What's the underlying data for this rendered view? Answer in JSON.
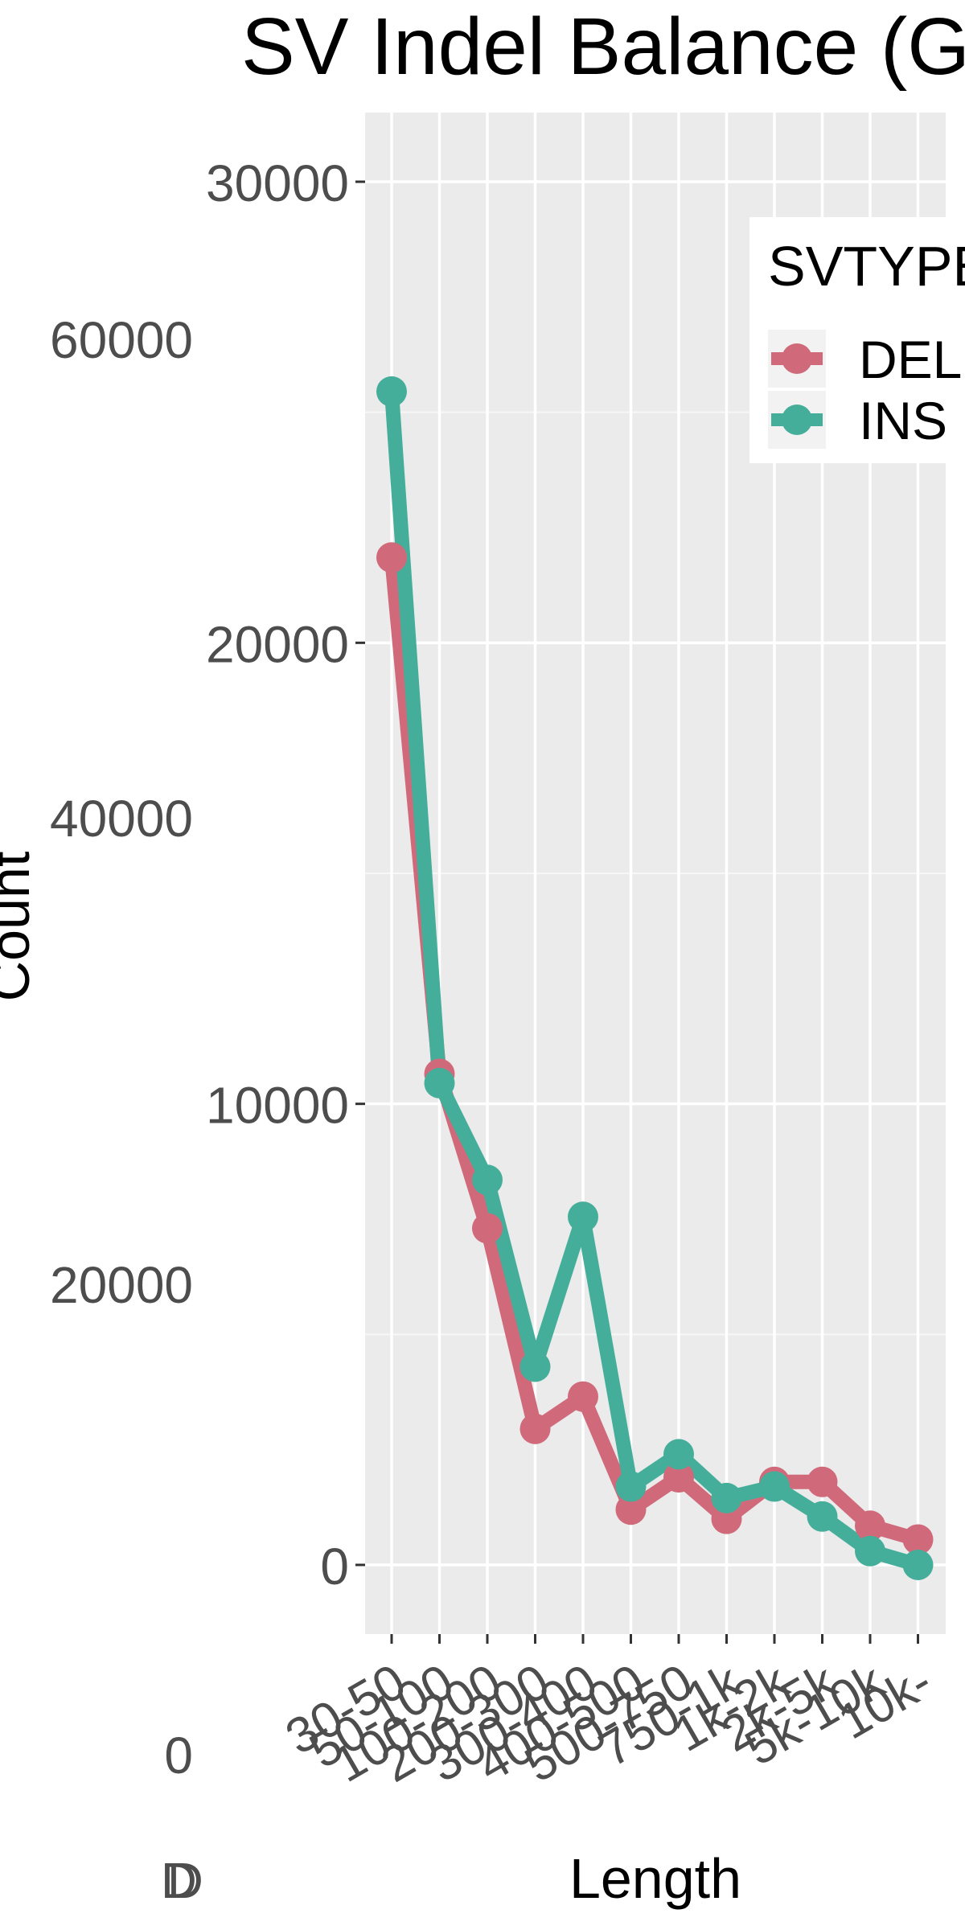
{
  "chart_data": {
    "type": "line",
    "title": "SV Indel Balance (GRCh",
    "xlabel": "Length",
    "ylabel": "Count",
    "categories": [
      "30-50",
      "50-100",
      "100-200",
      "200-300",
      "300-400",
      "400-500",
      "500-750",
      "750-1k",
      "1k-2k",
      "2k-5k",
      "5k-10k",
      "10k-"
    ],
    "ylim": [
      -1500,
      31500
    ],
    "yticks": [
      "0",
      "10000",
      "20000",
      "30000"
    ],
    "ghost_ticks": [
      "60000",
      "40000",
      "20000",
      "0"
    ],
    "ghost_mark": "D",
    "grid": true,
    "legend": {
      "title": "SVTYPE",
      "position": "top-right"
    },
    "series": [
      {
        "name": "DEL",
        "color": "#D06A7A",
        "values": [
          21850,
          10650,
          7300,
          2950,
          3650,
          1200,
          1900,
          1000,
          1800,
          1800,
          850,
          550
        ]
      },
      {
        "name": "INS",
        "color": "#45AE9A",
        "values": [
          25450,
          10450,
          8350,
          4300,
          7550,
          1700,
          2400,
          1450,
          1700,
          1050,
          300,
          0
        ]
      }
    ]
  }
}
